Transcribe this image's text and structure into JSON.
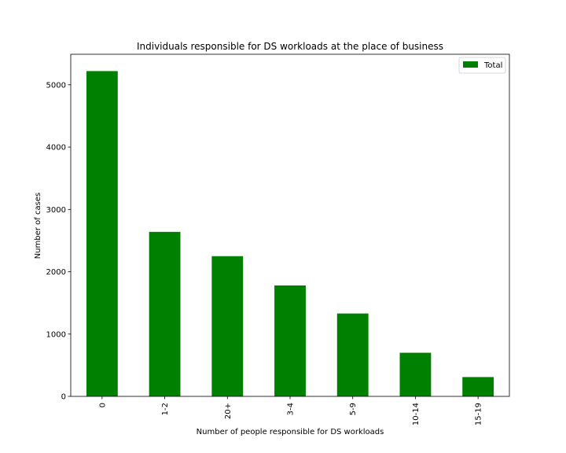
{
  "chart_data": {
    "type": "bar",
    "title": "Individuals responsible for DS workloads at the place of business",
    "xlabel": "Number of people responsible for DS workloads",
    "ylabel": "Number of cases",
    "categories": [
      "0",
      "1-2",
      "20+",
      "3-4",
      "5-9",
      "10-14",
      "15-19"
    ],
    "series": [
      {
        "name": "Total",
        "values": [
          5220,
          2640,
          2250,
          1780,
          1330,
          700,
          310
        ],
        "color": "#008000"
      }
    ],
    "ylim": [
      0,
      5490
    ],
    "yticks": [
      0,
      1000,
      2000,
      3000,
      4000,
      5000
    ],
    "grid": false,
    "legend_position": "top-right"
  }
}
